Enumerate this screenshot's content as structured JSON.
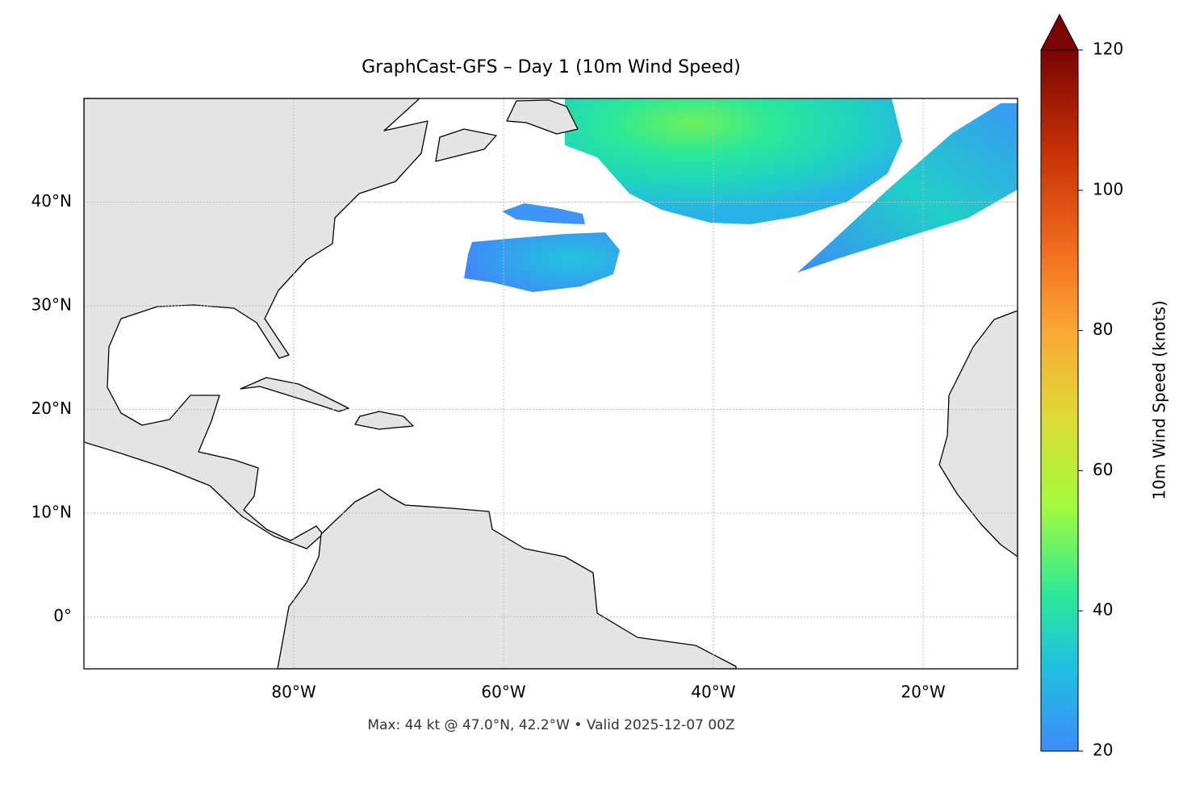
{
  "chart_data": {
    "type": "map",
    "title": "GraphCast-GFS – Day 1 (10m Wind Speed)",
    "footer": "Max: 44 kt @ 47.0°N, 42.2°W • Valid 2025-12-07 00Z",
    "xlim": [
      -100,
      -11
    ],
    "ylim": [
      -5,
      50
    ],
    "xticks": [
      {
        "value": -80,
        "label": "80°W"
      },
      {
        "value": -60,
        "label": "60°W"
      },
      {
        "value": -40,
        "label": "40°W"
      },
      {
        "value": -20,
        "label": "20°W"
      }
    ],
    "yticks": [
      {
        "value": 0,
        "label": "0°"
      },
      {
        "value": 10,
        "label": "10°N"
      },
      {
        "value": 20,
        "label": "20°N"
      },
      {
        "value": 30,
        "label": "30°N"
      },
      {
        "value": 40,
        "label": "40°N"
      }
    ],
    "grid": true,
    "colorbar": {
      "label": "10m Wind Speed (knots)",
      "lim": [
        20,
        120
      ],
      "ticks": [
        20,
        40,
        60,
        80,
        100,
        120
      ]
    }
  }
}
